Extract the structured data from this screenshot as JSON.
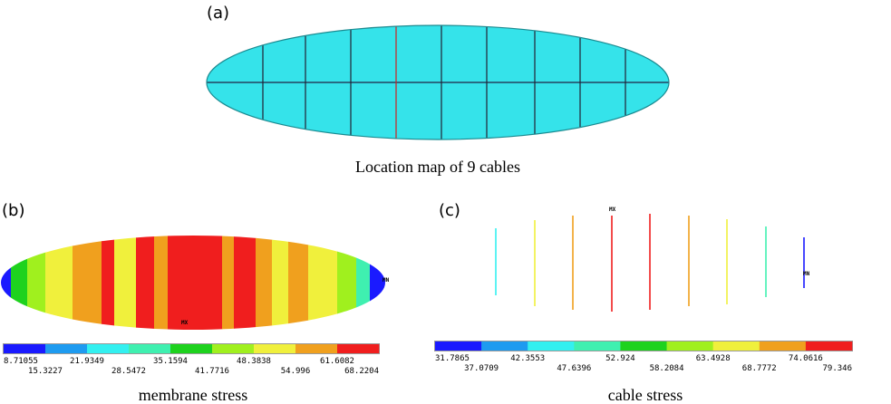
{
  "panels": [
    {
      "label": "(a)",
      "caption": "Location map of 9 cables"
    },
    {
      "label": "(b)",
      "caption": "membrane stress",
      "max_marker": "MX",
      "min_marker": "MN",
      "legend_top": [
        "8.71055",
        "21.9349",
        "35.1594",
        "48.3838",
        "61.6082"
      ],
      "legend_bottom": [
        "15.3227",
        "28.5472",
        "41.7716",
        "54.996",
        "68.2204"
      ]
    },
    {
      "label": "(c)",
      "caption": "cable stress",
      "max_marker": "MX",
      "min_marker": "MN",
      "legend_top": [
        "31.7865",
        "42.3553",
        "52.924",
        "63.4928",
        "74.0616"
      ],
      "legend_bottom": [
        "37.0709",
        "47.6396",
        "58.2084",
        "68.7772",
        "79.346"
      ]
    }
  ]
}
